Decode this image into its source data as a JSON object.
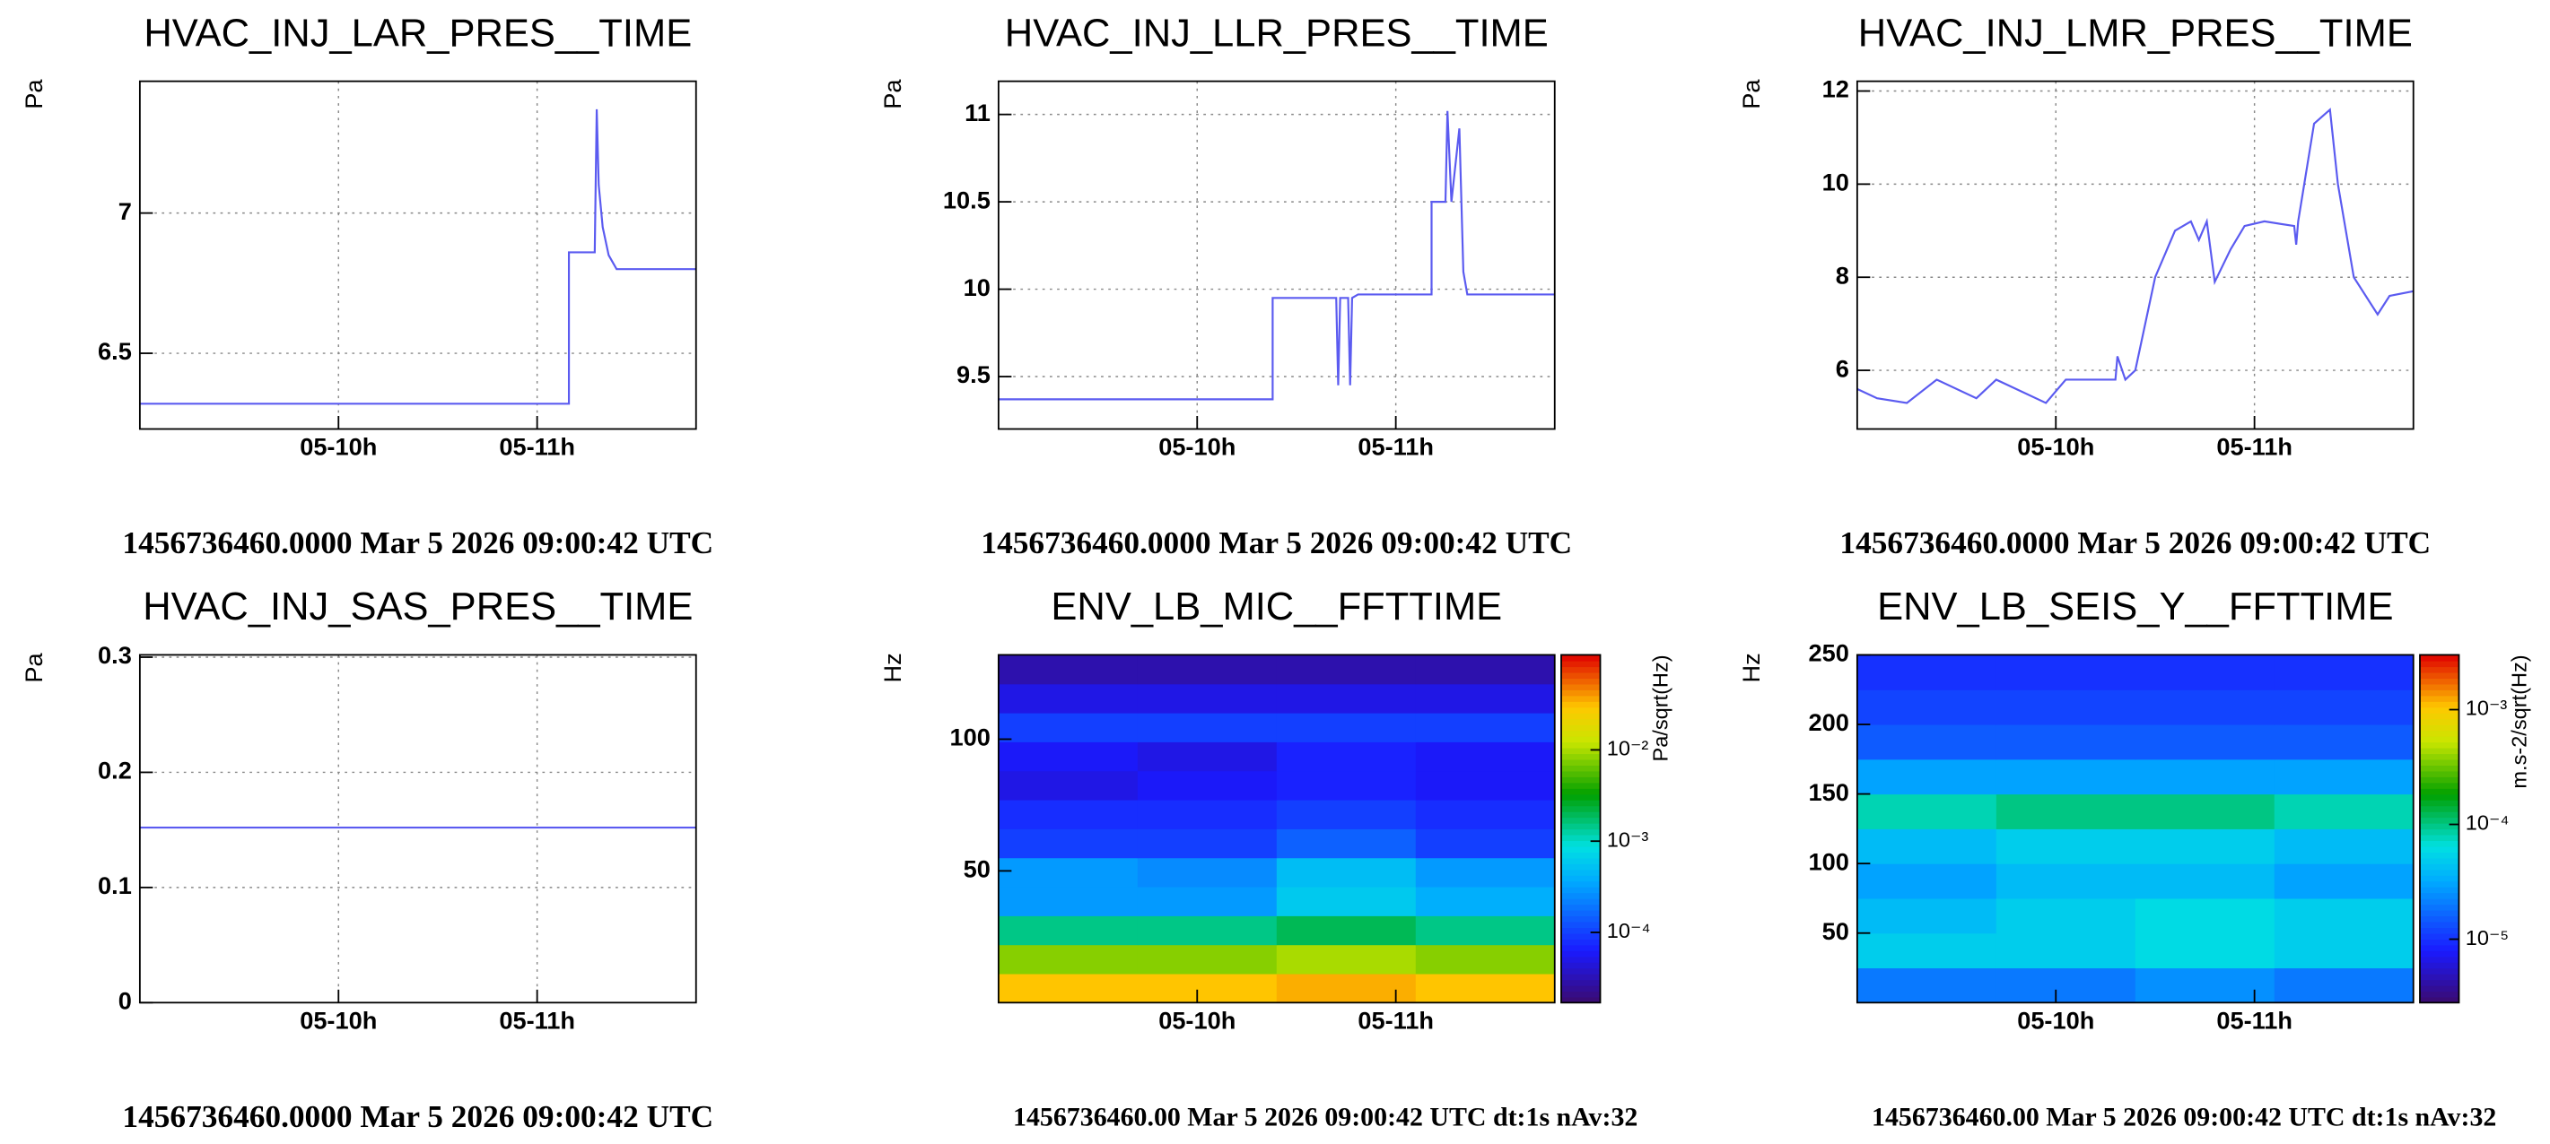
{
  "chart_data": [
    {
      "type": "line",
      "title": "HVAC_INJ_LAR_PRES__TIME",
      "y_label": "Pa",
      "footer": "1456736460.0000 Mar 5 2026 09:00:42 UTC",
      "color": "#5b5bf0",
      "grid": true,
      "x": [
        9.0,
        11.16,
        11.16,
        11.29,
        11.3,
        11.31,
        11.33,
        11.36,
        11.4,
        11.8
      ],
      "values": [
        6.32,
        6.32,
        6.86,
        6.86,
        7.37,
        7.1,
        6.95,
        6.85,
        6.8,
        6.8
      ],
      "xlim": [
        9.0,
        11.8
      ],
      "xticks": [
        {
          "value": 10,
          "label": "05-10h"
        },
        {
          "value": 11,
          "label": "05-11h"
        }
      ],
      "ylim": [
        6.23,
        7.47
      ],
      "yticks": [
        6.5,
        7
      ]
    },
    {
      "type": "line",
      "title": "HVAC_INJ_LLR_PRES__TIME",
      "y_label": "Pa",
      "footer": "1456736460.0000 Mar 5 2026 09:00:42 UTC",
      "color": "#5b5bf0",
      "grid": true,
      "x": [
        9.0,
        10.38,
        10.38,
        10.7,
        10.71,
        10.72,
        10.76,
        10.77,
        10.78,
        10.81,
        11.18,
        11.18,
        11.25,
        11.26,
        11.28,
        11.32,
        11.34,
        11.36,
        11.8
      ],
      "values": [
        9.37,
        9.37,
        9.95,
        9.95,
        9.45,
        9.95,
        9.95,
        9.45,
        9.95,
        9.97,
        9.97,
        10.5,
        10.5,
        11.02,
        10.5,
        10.92,
        10.1,
        9.97,
        9.97
      ],
      "xlim": [
        9.0,
        11.8
      ],
      "xticks": [
        {
          "value": 10,
          "label": "05-10h"
        },
        {
          "value": 11,
          "label": "05-11h"
        }
      ],
      "ylim": [
        9.2,
        11.19
      ],
      "yticks": [
        9.5,
        10,
        10.5,
        11
      ]
    },
    {
      "type": "line",
      "title": "HVAC_INJ_LMR_PRES__TIME",
      "y_label": "Pa",
      "footer": "1456736460.0000 Mar 5 2026 09:00:42 UTC",
      "color": "#5b5bf0",
      "grid": true,
      "x": [
        9.0,
        9.1,
        9.25,
        9.4,
        9.6,
        9.7,
        9.95,
        10.05,
        10.3,
        10.31,
        10.35,
        10.4,
        10.5,
        10.6,
        10.68,
        10.72,
        10.76,
        10.8,
        10.88,
        10.95,
        11.05,
        11.2,
        11.21,
        11.22,
        11.3,
        11.38,
        11.42,
        11.5,
        11.62,
        11.68,
        11.8
      ],
      "values": [
        5.6,
        5.4,
        5.3,
        5.8,
        5.4,
        5.8,
        5.3,
        5.8,
        5.8,
        6.3,
        5.8,
        6.0,
        8.0,
        9.0,
        9.2,
        8.8,
        9.2,
        7.9,
        8.6,
        9.1,
        9.2,
        9.1,
        8.7,
        9.2,
        11.3,
        11.6,
        10.0,
        8.0,
        7.2,
        7.6,
        7.7
      ],
      "xlim": [
        9.0,
        11.8
      ],
      "xticks": [
        {
          "value": 10,
          "label": "05-10h"
        },
        {
          "value": 11,
          "label": "05-11h"
        }
      ],
      "ylim": [
        4.74,
        12.21
      ],
      "yticks": [
        6,
        8,
        10,
        12
      ]
    },
    {
      "type": "line",
      "title": "HVAC_INJ_SAS_PRES__TIME",
      "y_label": "Pa",
      "footer": "1456736460.0000 Mar 5 2026 09:00:42 UTC",
      "color": "#5b5bf0",
      "grid": true,
      "x": [
        9.0,
        11.8
      ],
      "values": [
        0.152,
        0.152
      ],
      "xlim": [
        9.0,
        11.8
      ],
      "xticks": [
        {
          "value": 10,
          "label": "05-10h"
        },
        {
          "value": 11,
          "label": "05-11h"
        }
      ],
      "ylim": [
        0,
        0.302
      ],
      "yticks": [
        0,
        0.1,
        0.2,
        0.3
      ]
    },
    {
      "type": "heatmap",
      "title": "ENV_LB_MIC__FFTTIME",
      "y_label": "Hz",
      "footer": "1456736460.00 Mar 5 2026 09:00:42 UTC dt:1s nAv:32",
      "colormap": "rainbow",
      "z_log": true,
      "colorbar_label": "Pa/sqrt(Hz)",
      "x_bins": [
        9.0,
        9.7,
        10.4,
        11.1,
        11.8
      ],
      "y_bins": [
        0,
        11,
        22,
        33,
        44,
        55,
        66,
        77,
        88,
        99,
        110,
        121,
        132
      ],
      "z": [
        [
          0.03,
          0.03,
          0.035,
          0.03
        ],
        [
          0.008,
          0.008,
          0.01,
          0.008
        ],
        [
          0.0015,
          0.0015,
          0.002,
          0.0015
        ],
        [
          0.0003,
          0.0003,
          0.0006,
          0.0004
        ],
        [
          0.0003,
          0.00025,
          0.0005,
          0.0003
        ],
        [
          0.0001,
          0.0001,
          0.00015,
          0.0001
        ],
        [
          8e-05,
          8e-05,
          0.0001,
          8e-05
        ],
        [
          5e-05,
          6e-05,
          7e-05,
          6e-05
        ],
        [
          6e-05,
          5e-05,
          7e-05,
          6e-05
        ],
        [
          0.0001,
          0.0001,
          0.0001,
          0.0001
        ],
        [
          5e-05,
          5e-05,
          5e-05,
          5e-05
        ],
        [
          3e-05,
          3e-05,
          3e-05,
          3e-05
        ]
      ],
      "xlim": [
        9.0,
        11.8
      ],
      "xticks": [
        {
          "value": 10,
          "label": "05-10h"
        },
        {
          "value": 11,
          "label": "05-11h"
        }
      ],
      "ylim": [
        0,
        132
      ],
      "yticks": [
        50,
        100
      ],
      "zlim": [
        1.7e-05,
        0.11
      ],
      "zticks": [
        {
          "value": 0.0001,
          "label": "10⁻⁴"
        },
        {
          "value": 0.001,
          "label": "10⁻³"
        },
        {
          "value": 0.01,
          "label": "10⁻²"
        }
      ]
    },
    {
      "type": "heatmap",
      "title": "ENV_LB_SEIS_Y__FFTTIME",
      "y_label": "Hz",
      "footer": "1456736460.00 Mar 5 2026 09:00:42 UTC dt:1s nAv:32",
      "colormap": "rainbow",
      "z_log": true,
      "colorbar_label": "m.s-2/sqrt(Hz)",
      "x_bins": [
        9.0,
        9.7,
        10.4,
        11.1,
        11.8
      ],
      "y_bins": [
        0,
        25,
        50,
        75,
        100,
        125,
        150,
        175,
        200,
        225,
        250
      ],
      "z": [
        [
          2e-05,
          2e-05,
          2.5e-05,
          2e-05
        ],
        [
          5e-05,
          5e-05,
          6e-05,
          5e-05
        ],
        [
          4e-05,
          5e-05,
          6e-05,
          5e-05
        ],
        [
          3e-05,
          4e-05,
          4e-05,
          3e-05
        ],
        [
          4e-05,
          5e-05,
          5e-05,
          4e-05
        ],
        [
          8e-05,
          0.0001,
          0.0001,
          8e-05
        ],
        [
          3e-05,
          3e-05,
          3e-05,
          3e-05
        ],
        [
          1.5e-05,
          1.5e-05,
          1.5e-05,
          1.5e-05
        ],
        [
          1.2e-05,
          1.2e-05,
          1.2e-05,
          1.2e-05
        ],
        [
          1e-05,
          1e-05,
          1e-05,
          1e-05
        ]
      ],
      "xlim": [
        9.0,
        11.8
      ],
      "xticks": [
        {
          "value": 10,
          "label": "05-10h"
        },
        {
          "value": 11,
          "label": "05-11h"
        }
      ],
      "ylim": [
        0,
        250
      ],
      "yticks": [
        50,
        100,
        150,
        200,
        250
      ],
      "zlim": [
        2.8e-06,
        0.003
      ],
      "zticks": [
        {
          "value": 1e-05,
          "label": "10⁻⁵"
        },
        {
          "value": 0.0001,
          "label": "10⁻⁴"
        },
        {
          "value": 0.001,
          "label": "10⁻³"
        }
      ]
    }
  ]
}
